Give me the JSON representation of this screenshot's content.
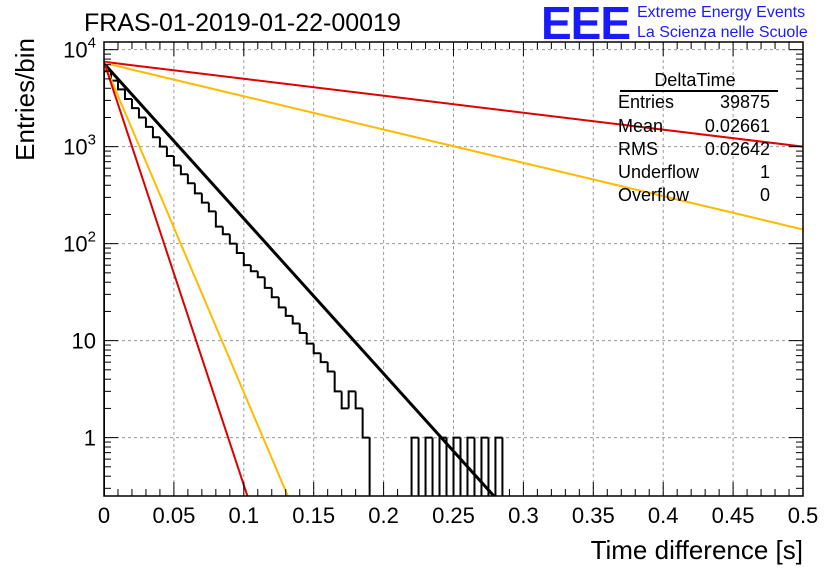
{
  "title": "FRAS-01-2019-01-22-00019",
  "logo": {
    "text": "EEE",
    "line1": "Extreme Energy Events",
    "line2": "La Scienza nelle Scuole",
    "color": "#1a1aff"
  },
  "stats": {
    "name": "DeltaTime",
    "rows": [
      {
        "label": "Entries",
        "value": "39875"
      },
      {
        "label": "Mean",
        "value": "0.02661"
      },
      {
        "label": "RMS",
        "value": "0.02642"
      },
      {
        "label": "Underflow",
        "value": "1"
      },
      {
        "label": "Overflow",
        "value": "0"
      }
    ]
  },
  "chart_data": {
    "type": "line",
    "xlabel": "Time difference [s]",
    "ylabel": "Entries/bin",
    "xlim": [
      0,
      0.5
    ],
    "ylim": [
      0.25,
      12000
    ],
    "yscale": "log",
    "grid": true,
    "x_ticks": [
      0,
      0.05,
      0.1,
      0.15,
      0.2,
      0.25,
      0.3,
      0.35,
      0.4,
      0.45,
      0.5
    ],
    "x_tick_labels": [
      "0",
      "0.05",
      "0.1",
      "0.15",
      "0.2",
      "0.25",
      "0.3",
      "0.35",
      "0.4",
      "0.45",
      "0.5"
    ],
    "y_ticks": [
      1,
      10,
      100,
      1000,
      10000
    ],
    "y_tick_labels": [
      {
        "base": "1",
        "exp": ""
      },
      {
        "base": "10",
        "exp": ""
      },
      {
        "base": "10",
        "exp": "2"
      },
      {
        "base": "10",
        "exp": "3"
      },
      {
        "base": "10",
        "exp": "4"
      }
    ],
    "histogram": {
      "bin_width": 0.005,
      "color": "#000000",
      "values": [
        6000,
        4800,
        3900,
        3100,
        2500,
        2000,
        1600,
        1250,
        1000,
        800,
        640,
        520,
        420,
        330,
        265,
        215,
        150,
        125,
        100,
        80,
        60,
        52,
        45,
        35,
        28,
        22,
        18,
        15,
        12,
        9.3,
        7.4,
        6.0,
        4.8,
        3.0,
        2.0,
        3.0,
        2.0,
        1.0,
        0,
        0,
        0,
        0,
        0,
        0,
        1.0,
        0,
        1.0,
        0,
        1.0,
        0,
        1.0,
        0,
        1.0,
        0,
        1.0,
        0,
        1.0
      ]
    },
    "series": [
      {
        "color": "#000000",
        "x": [
          0,
          0.28
        ],
        "y": [
          7200,
          0.24
        ]
      },
      {
        "color": "#dd0000",
        "x": [
          0,
          0.5
        ],
        "y": [
          7500,
          1000
        ]
      },
      {
        "color": "#ffbb00",
        "x": [
          0,
          0.5
        ],
        "y": [
          7300,
          140
        ]
      },
      {
        "color": "#ffbb00",
        "x": [
          0,
          0.132
        ],
        "y": [
          7300,
          0.24
        ]
      },
      {
        "color": "#dd0000",
        "x": [
          0,
          0.103
        ],
        "y": [
          7500,
          0.24
        ]
      }
    ]
  }
}
